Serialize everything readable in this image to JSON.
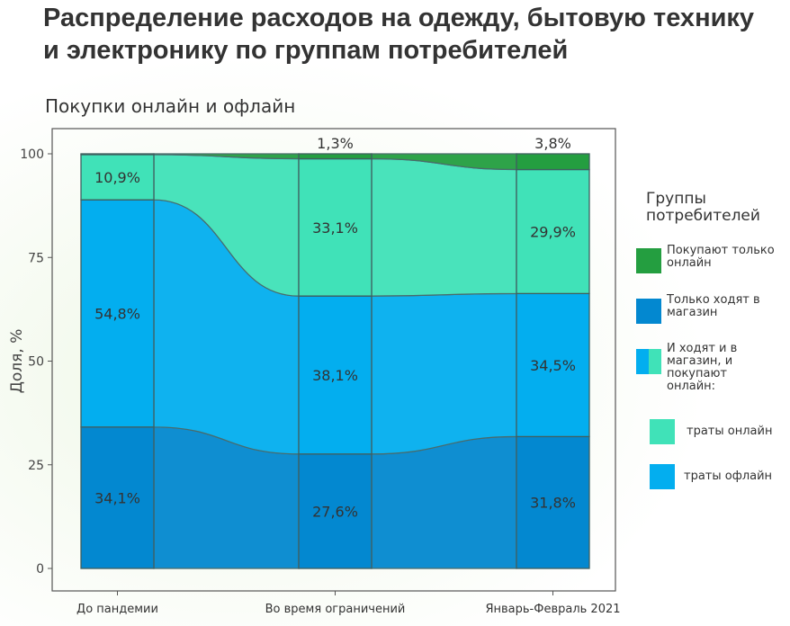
{
  "title": "Распределение расходов на одежду, бытовую технику и электронику по группам потребителей",
  "subtitle": "Покупки онлайн и офлайн",
  "chart_data": {
    "type": "sankey-stacked-bar",
    "ylabel": "Доля, %",
    "ylim": [
      0,
      100
    ],
    "yticks": [
      0,
      25,
      50,
      75,
      100
    ],
    "categories": [
      "До пандемии",
      "Во время ограничений",
      "Январь-Февраль 2021"
    ],
    "series": [
      {
        "name": "Только ходят в магазин",
        "color": "#0388d0",
        "values": [
          34.1,
          27.6,
          31.8
        ],
        "labels": [
          "34,1%",
          "27,6%",
          "31,8%"
        ]
      },
      {
        "name": "траты офлайн",
        "color": "#03aeef",
        "values": [
          54.8,
          38.1,
          34.5
        ],
        "labels": [
          "54,8%",
          "38,1%",
          "34,5%"
        ]
      },
      {
        "name": "траты онлайн",
        "color": "#40e2b8",
        "values": [
          10.9,
          33.1,
          29.9
        ],
        "labels": [
          "10,9%",
          "33,1%",
          "29,9%"
        ]
      },
      {
        "name": "Покупают только онлайн",
        "color": "#249e40",
        "values": [
          0.2,
          1.3,
          3.8
        ],
        "labels": [
          "",
          "1,3%",
          "3,8%"
        ]
      }
    ]
  },
  "legend": {
    "title": "Группы потребителей",
    "items": [
      {
        "label": "Покупают только онлайн",
        "color": "#249e40"
      },
      {
        "label": "Только ходят в магазин",
        "color": "#0388d0"
      },
      {
        "label": "И ходят и в магазин, и покупают онлайн:",
        "color": "#03aeef",
        "color2": "#40e2b8"
      },
      {
        "label": "траты онлайн",
        "color": "#40e2b8"
      },
      {
        "label": "траты офлайн",
        "color": "#03aeef"
      }
    ]
  }
}
